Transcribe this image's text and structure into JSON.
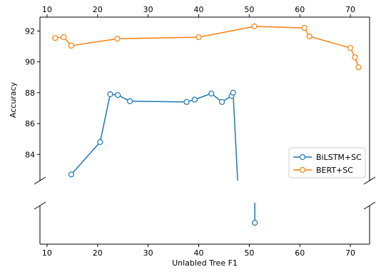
{
  "chart_data": {
    "type": "line",
    "title": "",
    "xlabel": "Unlabled Tree F1",
    "ylabel": "Accuracy",
    "xlim": [
      8.6,
      73.8
    ],
    "ylim_upper": [
      82.3,
      92.9
    ],
    "ylim_lower": "broken axis (lower panel, no tick labels)",
    "x_ticks": [
      10,
      20,
      30,
      40,
      50,
      60,
      70
    ],
    "x_tick_labels": [
      "10",
      "20",
      "30",
      "40",
      "50",
      "60",
      "70"
    ],
    "y_ticks": [
      84,
      86,
      88,
      90,
      92
    ],
    "y_tick_labels": [
      "84",
      "86",
      "88",
      "90",
      "92"
    ],
    "grid": false,
    "legend_placement": "lower-right of upper panel",
    "series": [
      {
        "name": "BiLSTM+SC",
        "color": "#1f77b4",
        "marker": "open-circle",
        "upper_points": [
          {
            "x": 14.8,
            "y": 82.7
          },
          {
            "x": 20.5,
            "y": 84.8
          },
          {
            "x": 22.5,
            "y": 87.9
          },
          {
            "x": 24.0,
            "y": 87.85
          },
          {
            "x": 26.4,
            "y": 87.45
          },
          {
            "x": 37.6,
            "y": 87.4
          },
          {
            "x": 39.2,
            "y": 87.55
          },
          {
            "x": 42.5,
            "y": 87.95
          },
          {
            "x": 44.6,
            "y": 87.4
          },
          {
            "x": 46.5,
            "y": 87.8
          },
          {
            "x": 46.8,
            "y": 88.0
          }
        ],
        "segment_to_break_x": 47.7,
        "lower_point": {
          "x": 51.1,
          "label": "below break"
        }
      },
      {
        "name": "BERT+SC",
        "color": "#ff7f0e",
        "marker": "open-circle",
        "upper_points": [
          {
            "x": 11.6,
            "y": 91.55
          },
          {
            "x": 13.3,
            "y": 91.6
          },
          {
            "x": 14.8,
            "y": 91.05
          },
          {
            "x": 23.9,
            "y": 91.5
          },
          {
            "x": 40.0,
            "y": 91.6
          },
          {
            "x": 51.0,
            "y": 92.3
          },
          {
            "x": 60.9,
            "y": 92.2
          },
          {
            "x": 61.9,
            "y": 91.65
          },
          {
            "x": 70.0,
            "y": 90.9
          },
          {
            "x": 70.9,
            "y": 90.3
          },
          {
            "x": 71.6,
            "y": 89.65
          }
        ]
      }
    ]
  }
}
